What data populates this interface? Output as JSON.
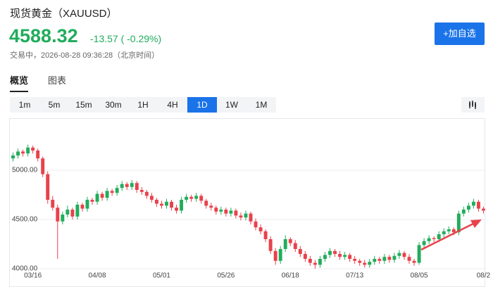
{
  "header": {
    "title": "现货黄金（XAUUSD）",
    "price": "4588.32",
    "change": "-13.57 ( -0.29%)",
    "status": "交易中，2026-08-28 09:36:28（北京时间）",
    "watch_button": "+加自选"
  },
  "tabs": [
    "概览",
    "图表"
  ],
  "intervals": [
    "1m",
    "5m",
    "15m",
    "30m",
    "1H",
    "4H",
    "1D",
    "1W",
    "1M"
  ],
  "active_interval": "1D",
  "chart_data": {
    "type": "candlestick",
    "up_color": "#21ad5c",
    "down_color": "#e8424b",
    "grid": true,
    "ylim": [
      3950,
      5500
    ],
    "yticks": [
      {
        "value": 4000,
        "label": "4000.00"
      },
      {
        "value": 4500,
        "label": "4500.00"
      },
      {
        "value": 5000,
        "label": "5000.00"
      }
    ],
    "categories": [
      null,
      null,
      null,
      null,
      "03/16",
      null,
      null,
      null,
      null,
      null,
      null,
      null,
      null,
      null,
      null,
      null,
      null,
      "04/08",
      null,
      null,
      null,
      null,
      null,
      null,
      null,
      null,
      null,
      null,
      null,
      null,
      "05/01",
      null,
      null,
      null,
      null,
      null,
      null,
      null,
      null,
      null,
      null,
      null,
      null,
      "05/26",
      null,
      null,
      null,
      null,
      null,
      null,
      null,
      null,
      null,
      null,
      null,
      null,
      "06/18",
      null,
      null,
      null,
      null,
      null,
      null,
      null,
      null,
      null,
      null,
      null,
      null,
      "07/13",
      null,
      null,
      null,
      null,
      null,
      null,
      null,
      null,
      null,
      null,
      null,
      null,
      "08/05",
      null,
      null,
      null,
      null,
      null,
      null,
      null,
      null,
      null,
      null,
      null,
      null,
      "08/2"
    ],
    "open": [
      5120,
      5150,
      5190,
      5170,
      5230,
      5200,
      5120,
      4960,
      4700,
      4620,
      4480,
      4550,
      4600,
      4530,
      4650,
      4610,
      4700,
      4680,
      4760,
      4720,
      4790,
      4770,
      4820,
      4860,
      4830,
      4870,
      4800,
      4780,
      4740,
      4700,
      4660,
      4640,
      4680,
      4620,
      4590,
      4700,
      4730,
      4710,
      4740,
      4690,
      4640,
      4620,
      4580,
      4600,
      4560,
      4590,
      4540,
      4520,
      4560,
      4480,
      4420,
      4380,
      4300,
      4180,
      4080,
      4200,
      4300,
      4260,
      4200,
      4150,
      4100,
      4060,
      4040,
      4100,
      4140,
      4180,
      4150,
      4120,
      4140,
      4100,
      4080,
      4060,
      4040,
      4070,
      4100,
      4080,
      4120,
      4090,
      4130,
      4160,
      4120,
      4080,
      4060,
      4240,
      4280,
      4310,
      4300,
      4350,
      4380,
      4400,
      4370,
      4560,
      4600,
      4640,
      4680,
      4610
    ],
    "high": [
      5180,
      5220,
      5210,
      5260,
      5250,
      5220,
      5140,
      4990,
      4740,
      4650,
      4580,
      4640,
      4620,
      4680,
      4670,
      4730,
      4720,
      4790,
      4780,
      4820,
      4810,
      4850,
      4890,
      4880,
      4900,
      4890,
      4830,
      4800,
      4770,
      4720,
      4690,
      4710,
      4700,
      4650,
      4730,
      4760,
      4750,
      4770,
      4760,
      4710,
      4670,
      4640,
      4630,
      4620,
      4620,
      4610,
      4570,
      4590,
      4580,
      4510,
      4450,
      4400,
      4330,
      4210,
      4230,
      4340,
      4320,
      4290,
      4230,
      4180,
      4130,
      4090,
      4130,
      4170,
      4210,
      4200,
      4180,
      4170,
      4160,
      4130,
      4100,
      4090,
      4100,
      4130,
      4120,
      4150,
      4140,
      4160,
      4190,
      4180,
      4150,
      4100,
      4270,
      4310,
      4340,
      4330,
      4380,
      4410,
      4430,
      4420,
      4590,
      4630,
      4670,
      4710,
      4700,
      4630
    ],
    "low": [
      5090,
      5120,
      5140,
      5140,
      5170,
      5090,
      4930,
      4660,
      4590,
      4100,
      4450,
      4520,
      4500,
      4500,
      4580,
      4580,
      4650,
      4650,
      4690,
      4690,
      4740,
      4740,
      4790,
      4800,
      4800,
      4770,
      4750,
      4710,
      4670,
      4630,
      4610,
      4610,
      4590,
      4560,
      4560,
      4670,
      4680,
      4680,
      4660,
      4610,
      4590,
      4550,
      4550,
      4530,
      4530,
      4510,
      4490,
      4490,
      4450,
      4390,
      4350,
      4270,
      4150,
      4040,
      4050,
      4170,
      4230,
      4170,
      4120,
      4070,
      4030,
      4000,
      4010,
      4070,
      4110,
      4120,
      4090,
      4090,
      4070,
      4050,
      4030,
      4010,
      4010,
      4040,
      4050,
      4050,
      4060,
      4060,
      4100,
      4090,
      4050,
      4030,
      4040,
      4210,
      4250,
      4270,
      4270,
      4320,
      4350,
      4340,
      4340,
      4530,
      4570,
      4610,
      4580,
      4560
    ],
    "close": [
      5150,
      5190,
      5170,
      5230,
      5200,
      5120,
      4960,
      4700,
      4620,
      4480,
      4550,
      4600,
      4530,
      4650,
      4610,
      4700,
      4680,
      4760,
      4720,
      4790,
      4770,
      4820,
      4860,
      4830,
      4870,
      4800,
      4780,
      4740,
      4700,
      4660,
      4640,
      4680,
      4620,
      4590,
      4700,
      4730,
      4710,
      4740,
      4690,
      4640,
      4620,
      4580,
      4600,
      4560,
      4590,
      4540,
      4520,
      4560,
      4480,
      4420,
      4380,
      4300,
      4180,
      4080,
      4200,
      4300,
      4260,
      4200,
      4150,
      4100,
      4060,
      4040,
      4100,
      4140,
      4180,
      4150,
      4120,
      4140,
      4100,
      4080,
      4060,
      4040,
      4070,
      4100,
      4080,
      4120,
      4090,
      4130,
      4160,
      4120,
      4080,
      4060,
      4240,
      4280,
      4310,
      4300,
      4350,
      4380,
      4400,
      4370,
      4560,
      4600,
      4640,
      4680,
      4610,
      4590
    ]
  }
}
